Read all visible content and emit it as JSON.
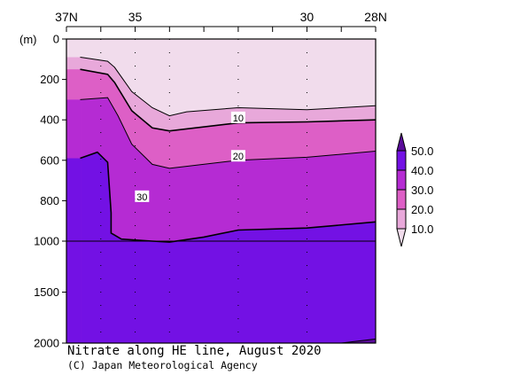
{
  "chart_data": {
    "type": "heatmap",
    "title": "Nitrate along HE line, August 2020",
    "credit": "(C) Japan Meteorological Agency",
    "x_axis": {
      "ticks": [
        {
          "label": "37N",
          "lat": 37
        },
        {
          "label": "35",
          "lat": 35
        },
        {
          "label": "30",
          "lat": 30
        },
        {
          "label": "28N",
          "lat": 28
        }
      ],
      "xlim": [
        37,
        28
      ],
      "station_marks_lat": [
        36.0,
        35.0,
        34.0,
        32.0,
        30.0
      ]
    },
    "y_axis": {
      "unit_label": "(m)",
      "ticks": [
        0,
        200,
        400,
        600,
        800,
        1000,
        1500,
        2000
      ],
      "ylim": [
        0,
        2000
      ],
      "scale": "piecewise-linear: 0-1000 m stretched, 1000-2000 m compressed"
    },
    "colorbar": {
      "labels": [
        "50.0",
        "40.0",
        "30.0",
        "20.0",
        "10.0"
      ],
      "levels": [
        10,
        20,
        30,
        40,
        50
      ],
      "colors": [
        "#f1dcec",
        "#e8a8da",
        "#dd5fc6",
        "#b52bd3",
        "#7311e4",
        "#5a0c9a"
      ]
    },
    "contour_labels": [
      {
        "text": "10",
        "value": 10,
        "lat": 32.0,
        "depth": 390
      },
      {
        "text": "20",
        "value": 20,
        "lat": 32.0,
        "depth": 580
      },
      {
        "text": "30",
        "value": 30,
        "lat": 34.8,
        "depth": 780
      }
    ],
    "fill_bands": [
      {
        "range": "10-20",
        "color": "#e8a8da",
        "upper_depths": [
          [
            36.6,
            90
          ],
          [
            35.8,
            110
          ],
          [
            35.6,
            140
          ],
          [
            35.1,
            260
          ],
          [
            34.5,
            340
          ],
          [
            34.0,
            380
          ],
          [
            33.5,
            360
          ],
          [
            32.0,
            340
          ],
          [
            30.0,
            350
          ],
          [
            28.0,
            330
          ]
        ]
      },
      {
        "range": "20-30",
        "color": "#dd5fc6",
        "upper_depths": [
          [
            36.6,
            150
          ],
          [
            35.8,
            175
          ],
          [
            35.6,
            215
          ],
          [
            35.1,
            355
          ],
          [
            34.5,
            440
          ],
          [
            34.0,
            455
          ],
          [
            32.0,
            415
          ],
          [
            30.0,
            410
          ],
          [
            28.0,
            400
          ]
        ]
      },
      {
        "range": "30-40",
        "color": "#b52bd3",
        "upper_depths": [
          [
            36.6,
            300
          ],
          [
            35.8,
            290
          ],
          [
            35.5,
            380
          ],
          [
            35.1,
            520
          ],
          [
            34.5,
            620
          ],
          [
            34.0,
            640
          ],
          [
            32.0,
            600
          ],
          [
            30.0,
            585
          ],
          [
            28.0,
            555
          ]
        ]
      },
      {
        "range": "40-50",
        "color": "#7311e4",
        "upper_depths": [
          [
            36.6,
            590
          ],
          [
            36.1,
            560
          ],
          [
            35.8,
            610
          ],
          [
            35.7,
            860
          ],
          [
            35.7,
            960
          ],
          [
            35.4,
            990
          ],
          [
            34.5,
            1000
          ],
          [
            34.0,
            1010
          ],
          [
            33.0,
            980
          ],
          [
            32.0,
            945
          ],
          [
            30.0,
            935
          ],
          [
            28.0,
            905
          ]
        ]
      },
      {
        "range": ">50",
        "color": "#5a0c9a",
        "upper_depths": [
          [
            29.0,
            2000
          ],
          [
            28.0,
            1960
          ]
        ]
      }
    ]
  }
}
